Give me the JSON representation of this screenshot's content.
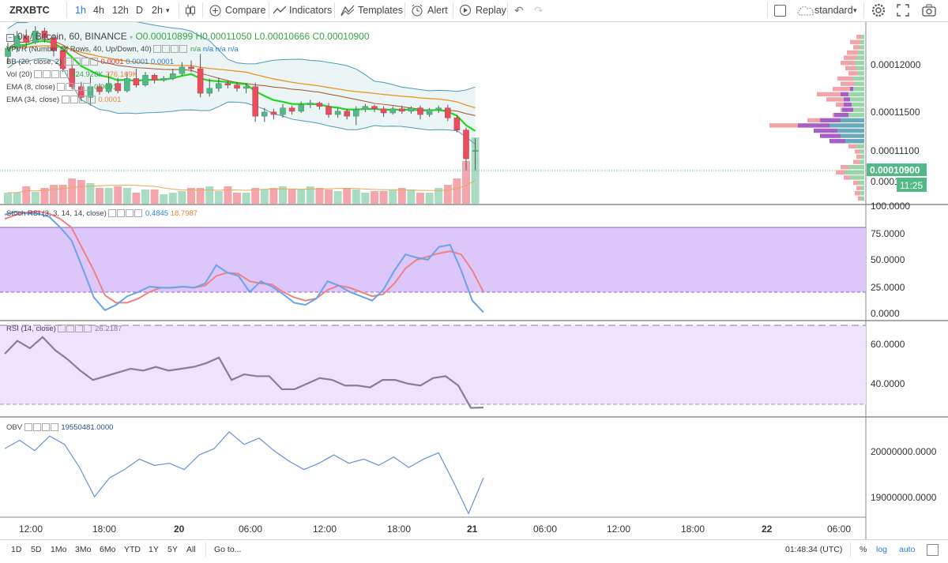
{
  "toolbar": {
    "symbol": "ZRXBTC",
    "intervals": [
      "1h",
      "4h",
      "12h",
      "D",
      "2h"
    ],
    "active_interval": "1h",
    "compare": "Compare",
    "indicators": "Indicators",
    "templates": "Templates",
    "alert": "Alert",
    "replay": "Replay",
    "layout": "standard"
  },
  "legends": {
    "main": {
      "title": "0x / Bitcoin, 60, BINANCE",
      "o": "O0.00010899",
      "h": "H0.00011050",
      "l": "L0.00010666",
      "c": "C0.00010900"
    },
    "vpvr": {
      "label": "VPVR (Number Of Rows, 40, Up/Down, 40)",
      "v1": "n/a",
      "v2": "n/a",
      "v3": "n/a",
      "v4": "n/a"
    },
    "bb": {
      "label": "BB (20, close, 2)",
      "v1": "0.0001",
      "v2": "0.0001",
      "v3": "0.0001"
    },
    "vol": {
      "label": "Vol (20)",
      "v1": "924.928K",
      "v2": "276.169K"
    },
    "ema8": {
      "label": "EMA (8, close)",
      "v1": "0.0001"
    },
    "ema34": {
      "label": "EMA (34, close)",
      "v1": "0.0001"
    },
    "stoch": {
      "label": "Stoch RSI (3, 3, 14, 14, close)",
      "k": "0.4845",
      "d": "18.7987"
    },
    "rsi": {
      "label": "RSI (14, close)",
      "v": "26.2187"
    },
    "obv": {
      "label": "OBV",
      "v": "19550481.0000"
    }
  },
  "price_axis": {
    "main": [
      "0.00012000",
      "0.00011500",
      "0.00011100",
      "0.00010900",
      "0.00010500"
    ],
    "current_price": "0.00010900",
    "countdown": "11:25",
    "stoch": [
      "100.0000",
      "75.0000",
      "50.0000",
      "25.0000",
      "0.0000"
    ],
    "rsi": [
      "60.0000",
      "40.0000"
    ],
    "obv": [
      "20000000.0000",
      "19000000.0000"
    ]
  },
  "time_axis": [
    "12:00",
    "18:00",
    "20",
    "06:00",
    "12:00",
    "18:00",
    "21",
    "06:00",
    "12:00",
    "18:00",
    "22",
    "06:00"
  ],
  "bottombar": {
    "ranges": [
      "1D",
      "5D",
      "1Mo",
      "3Mo",
      "6Mo",
      "YTD",
      "1Y",
      "5Y",
      "All"
    ],
    "goto": "Go to...",
    "clock": "01:48:34 (UTC)",
    "pct": "%",
    "log": "log",
    "auto": "auto"
  },
  "colors": {
    "up": "#53b987",
    "down": "#eb4d5c",
    "ema8": "#1fd81f",
    "ema34": "#e8941f",
    "bb_fill": "#e6f2f3",
    "stoch_fill": "#dcc6fa",
    "rsi_fill": "#f0e2fd",
    "obv_line": "#6a8fd8",
    "stoch_k": "#6aa3e8",
    "stoch_d": "#f08080",
    "rsi_line": "#8a7d8f"
  },
  "chart_data": [
    {
      "type": "candlestick",
      "title": "0x / Bitcoin, 60, BINANCE",
      "ylim": [
        0.0001025,
        0.0001245
      ],
      "candles": [
        {
          "o": 0.0001205,
          "c": 0.0001215,
          "h": 0.0001222,
          "l": 0.0001196
        },
        {
          "o": 0.0001215,
          "c": 0.000123,
          "h": 0.0001236,
          "l": 0.000121
        },
        {
          "o": 0.000123,
          "c": 0.0001222,
          "h": 0.0001238,
          "l": 0.0001215
        },
        {
          "o": 0.0001222,
          "c": 0.0001236,
          "h": 0.0001242,
          "l": 0.000122
        },
        {
          "o": 0.0001236,
          "c": 0.0001228,
          "h": 0.000124,
          "l": 0.0001222
        },
        {
          "o": 0.0001228,
          "c": 0.0001212,
          "h": 0.0001232,
          "l": 0.0001205
        },
        {
          "o": 0.0001212,
          "c": 0.000119,
          "h": 0.0001215,
          "l": 0.0001186
        },
        {
          "o": 0.000119,
          "c": 0.0001168,
          "h": 0.0001195,
          "l": 0.0001165
        },
        {
          "o": 0.0001168,
          "c": 0.0001155,
          "h": 0.0001174,
          "l": 0.000115
        },
        {
          "o": 0.0001155,
          "c": 0.0001168,
          "h": 0.000118,
          "l": 0.0001145
        },
        {
          "o": 0.0001168,
          "c": 0.0001162,
          "h": 0.0001172,
          "l": 0.0001158
        },
        {
          "o": 0.0001162,
          "c": 0.0001172,
          "h": 0.0001186,
          "l": 0.000116
        },
        {
          "o": 0.0001172,
          "c": 0.0001163,
          "h": 0.0001179,
          "l": 0.000116
        },
        {
          "o": 0.0001163,
          "c": 0.0001178,
          "h": 0.0001186,
          "l": 0.0001161
        },
        {
          "o": 0.0001178,
          "c": 0.000117,
          "h": 0.000119,
          "l": 0.0001167
        },
        {
          "o": 0.000117,
          "c": 0.0001182,
          "h": 0.0001186,
          "l": 0.0001168
        },
        {
          "o": 0.0001182,
          "c": 0.0001176,
          "h": 0.0001184,
          "l": 0.0001172
        },
        {
          "o": 0.0001176,
          "c": 0.0001178,
          "h": 0.0001181,
          "l": 0.0001174
        },
        {
          "o": 0.0001178,
          "c": 0.0001184,
          "h": 0.000119,
          "l": 0.0001176
        },
        {
          "o": 0.0001184,
          "c": 0.0001192,
          "h": 0.0001198,
          "l": 0.0001181
        },
        {
          "o": 0.0001192,
          "c": 0.000119,
          "h": 0.00012,
          "l": 0.0001186
        },
        {
          "o": 0.000119,
          "c": 0.000116,
          "h": 0.0001208,
          "l": 0.0001155
        },
        {
          "o": 0.000116,
          "c": 0.0001166,
          "h": 0.0001178,
          "l": 0.0001156
        },
        {
          "o": 0.0001166,
          "c": 0.0001172,
          "h": 0.0001179,
          "l": 0.0001162
        },
        {
          "o": 0.0001172,
          "c": 0.000117,
          "h": 0.0001176,
          "l": 0.0001166
        },
        {
          "o": 0.000117,
          "c": 0.0001166,
          "h": 0.0001174,
          "l": 0.0001162
        },
        {
          "o": 0.0001166,
          "c": 0.0001168,
          "h": 0.0001172,
          "l": 0.000116
        },
        {
          "o": 0.0001168,
          "c": 0.0001132,
          "h": 0.0001173,
          "l": 0.0001125
        },
        {
          "o": 0.0001132,
          "c": 0.0001137,
          "h": 0.0001142,
          "l": 0.0001125
        },
        {
          "o": 0.0001137,
          "c": 0.0001134,
          "h": 0.0001141,
          "l": 0.0001128
        },
        {
          "o": 0.0001134,
          "c": 0.0001142,
          "h": 0.0001147,
          "l": 0.000113
        },
        {
          "o": 0.0001142,
          "c": 0.0001138,
          "h": 0.0001145,
          "l": 0.0001134
        },
        {
          "o": 0.0001138,
          "c": 0.0001146,
          "h": 0.000115,
          "l": 0.0001136
        },
        {
          "o": 0.0001146,
          "c": 0.0001148,
          "h": 0.0001152,
          "l": 0.0001142
        },
        {
          "o": 0.0001148,
          "c": 0.0001144,
          "h": 0.000115,
          "l": 0.000114
        },
        {
          "o": 0.0001144,
          "c": 0.0001134,
          "h": 0.0001148,
          "l": 0.000113
        },
        {
          "o": 0.0001134,
          "c": 0.0001138,
          "h": 0.0001142,
          "l": 0.000113
        },
        {
          "o": 0.0001138,
          "c": 0.0001132,
          "h": 0.0001141,
          "l": 0.0001128
        },
        {
          "o": 0.0001132,
          "c": 0.000114,
          "h": 0.0001144,
          "l": 0.0001121
        },
        {
          "o": 0.000114,
          "c": 0.0001144,
          "h": 0.0001147,
          "l": 0.0001137
        },
        {
          "o": 0.0001144,
          "c": 0.0001141,
          "h": 0.0001146,
          "l": 0.0001137
        },
        {
          "o": 0.0001141,
          "c": 0.0001136,
          "h": 0.0001144,
          "l": 0.0001131
        },
        {
          "o": 0.0001136,
          "c": 0.0001141,
          "h": 0.0001144,
          "l": 0.0001134
        },
        {
          "o": 0.0001141,
          "c": 0.0001138,
          "h": 0.0001145,
          "l": 0.0001135
        },
        {
          "o": 0.0001138,
          "c": 0.0001142,
          "h": 0.0001144,
          "l": 0.0001135
        },
        {
          "o": 0.0001142,
          "c": 0.0001134,
          "h": 0.0001145,
          "l": 0.0001128
        },
        {
          "o": 0.0001134,
          "c": 0.000114,
          "h": 0.0001142,
          "l": 0.0001131
        },
        {
          "o": 0.000114,
          "c": 0.0001142,
          "h": 0.0001145,
          "l": 0.0001136
        },
        {
          "o": 0.0001142,
          "c": 0.000113,
          "h": 0.0001146,
          "l": 0.0001126
        },
        {
          "o": 0.000113,
          "c": 0.0001115,
          "h": 0.0001133,
          "l": 0.0001112
        },
        {
          "o": 0.0001115,
          "c": 0.000108,
          "h": 0.0001118,
          "l": 0.0001066
        },
        {
          "o": 0.000109,
          "c": 0.000109,
          "h": 0.0001105,
          "l": 0.0001066
        }
      ],
      "volume": [
        14,
        14,
        22,
        15,
        20,
        24,
        24,
        32,
        30,
        26,
        20,
        20,
        22,
        20,
        14,
        18,
        18,
        12,
        14,
        16,
        20,
        20,
        22,
        16,
        22,
        14,
        14,
        20,
        18,
        20,
        22,
        18,
        18,
        22,
        20,
        18,
        16,
        20,
        18,
        14,
        16,
        16,
        18,
        20,
        18,
        14,
        14,
        20,
        24,
        32,
        54,
        84
      ]
    },
    {
      "type": "line",
      "title": "Stoch RSI (3, 3, 14, 14, close)",
      "ylim": [
        0,
        100
      ],
      "series": [
        {
          "values": [
            92,
            95,
            93,
            93,
            90,
            80,
            68,
            42,
            15,
            3,
            8,
            16,
            20,
            25,
            24,
            24,
            25,
            24,
            28,
            45,
            38,
            35,
            20,
            30,
            25,
            18,
            10,
            8,
            14,
            30,
            26,
            20,
            16,
            12,
            22,
            40,
            55,
            52,
            50,
            62,
            64,
            40,
            12,
            1
          ]
        },
        {
          "values": [
            88,
            92,
            94,
            95,
            93,
            88,
            80,
            60,
            40,
            17,
            10,
            10,
            14,
            20,
            24,
            24,
            25,
            24,
            26,
            35,
            38,
            37,
            30,
            28,
            27,
            20,
            15,
            12,
            14,
            22,
            26,
            24,
            20,
            16,
            18,
            28,
            42,
            50,
            53,
            56,
            58,
            55,
            40,
            20
          ]
        }
      ]
    },
    {
      "type": "line",
      "title": "RSI (14, close)",
      "ylim": [
        22,
        72
      ],
      "series": [
        {
          "values": [
            55,
            62,
            58,
            64,
            57,
            52,
            46,
            41,
            43,
            45,
            47,
            46,
            48,
            46,
            47,
            48,
            50,
            53,
            41,
            44,
            43,
            43,
            36,
            36,
            39,
            42,
            41,
            38,
            38,
            37,
            41,
            41,
            39,
            38,
            42,
            43,
            38,
            26,
            26.2
          ]
        }
      ]
    },
    {
      "type": "line",
      "title": "OBV",
      "ylim": [
        18650000,
        20950000
      ],
      "series": [
        {
          "values": [
            20250000,
            20450000,
            20200000,
            20550000,
            20350000,
            19800000,
            19100000,
            19550000,
            19750000,
            20000000,
            19850000,
            19900000,
            19750000,
            20100000,
            20250000,
            20650000,
            20350000,
            20500000,
            20200000,
            19950000,
            19750000,
            19900000,
            20100000,
            19900000,
            20000000,
            19850000,
            20050000,
            19800000,
            20000000,
            20150000,
            19450000,
            18700000,
            19550481
          ]
        }
      ]
    }
  ]
}
